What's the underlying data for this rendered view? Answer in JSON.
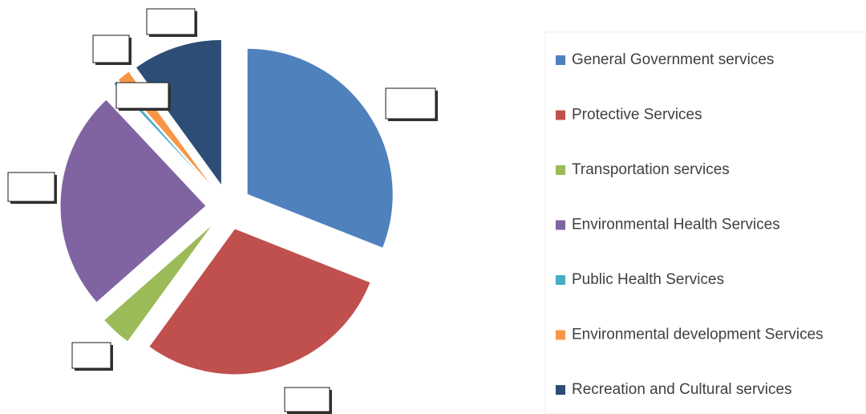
{
  "chart_data": {
    "type": "pie",
    "exploded": true,
    "categories": [
      "General Government services",
      "Protective Services",
      "Transportation services",
      "Environmental Health Services",
      "Public Health Services",
      "Environmental development Services",
      "Recreation and Cultural services"
    ],
    "values": [
      31,
      29,
      3.5,
      24.5,
      0.5,
      1.5,
      10
    ],
    "colors": [
      "#4f81bd",
      "#c0504d",
      "#9bbb59",
      "#8064a2",
      "#4bacc6",
      "#f79646",
      "#2c4d75"
    ],
    "legend": "right"
  }
}
